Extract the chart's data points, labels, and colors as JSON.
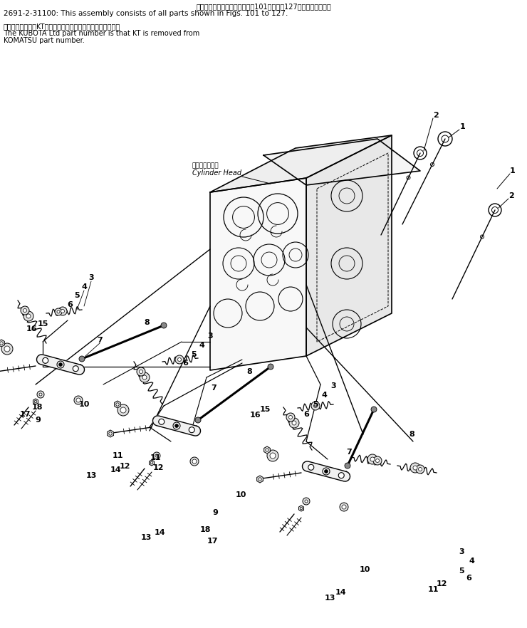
{
  "title_jp": "このアセンブリの構成部品は第101図から第127図まで含みます．",
  "title_en": "2691-2-31100: This assembly consists of all parts shown in Figs. 101 to 127.",
  "note_jp": "品番のメーカ記号KTを除いたものが久保田鉄工の品番です．",
  "note_en1": "The KUBOTA Ltd part number is that KT is removed from",
  "note_en2": "KOMATSU part number.",
  "cylinder_head_jp": "シリンダヘッド",
  "cylinder_head_en": "Cylinder Head",
  "bg_color": "#ffffff",
  "lc": "#000000",
  "tc": "#000000"
}
